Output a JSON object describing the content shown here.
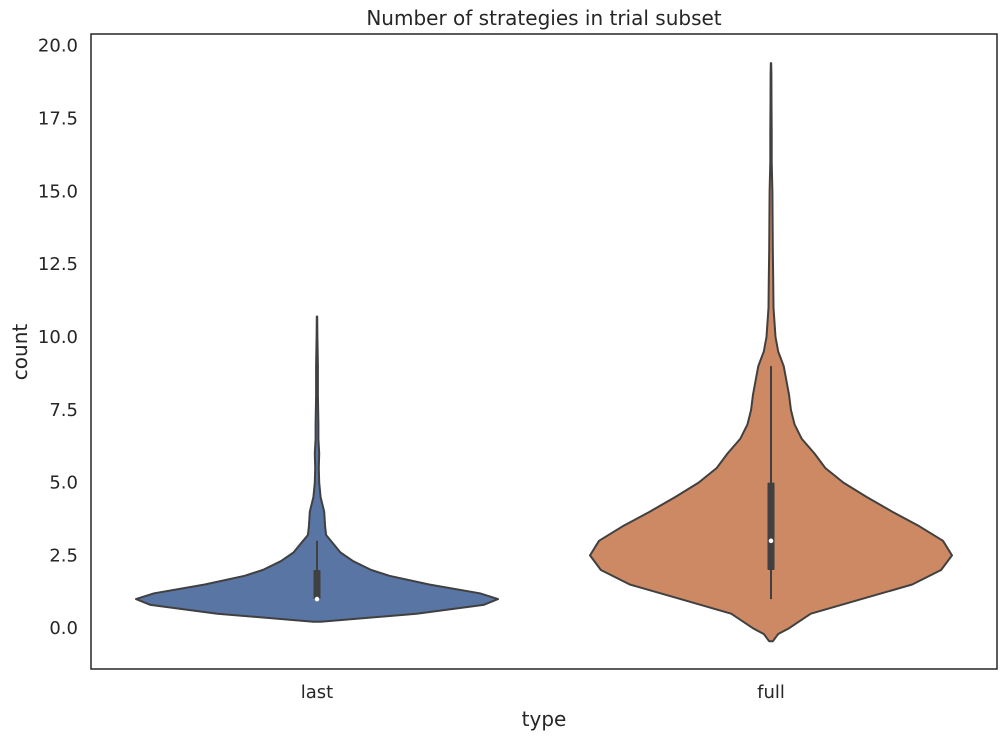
{
  "chart_data": {
    "type": "violin",
    "title": "Number of strategies in trial subset",
    "xlabel": "type",
    "ylabel": "count",
    "ylim": [
      -1.4,
      20.4
    ],
    "yticks": [
      "0.0",
      "2.5",
      "5.0",
      "7.5",
      "10.0",
      "12.5",
      "15.0",
      "17.5",
      "20.0"
    ],
    "grid": false,
    "categories": [
      "last",
      "full"
    ],
    "series": [
      {
        "category": "last",
        "color": "#5875a4",
        "density_profile": [
          [
            0.22,
            0.02
          ],
          [
            0.5,
            0.55
          ],
          [
            0.8,
            0.92
          ],
          [
            1.0,
            1.0
          ],
          [
            1.2,
            0.9
          ],
          [
            1.5,
            0.62
          ],
          [
            1.8,
            0.4
          ],
          [
            2.0,
            0.3
          ],
          [
            2.3,
            0.2
          ],
          [
            2.6,
            0.13
          ],
          [
            2.9,
            0.09
          ],
          [
            3.2,
            0.05
          ],
          [
            3.5,
            0.045
          ],
          [
            4.0,
            0.04
          ],
          [
            4.5,
            0.02
          ],
          [
            5.0,
            0.012
          ],
          [
            5.5,
            0.01
          ],
          [
            6.0,
            0.012
          ],
          [
            6.5,
            0.008
          ],
          [
            7.0,
            0.008
          ],
          [
            8.0,
            0.005
          ],
          [
            9.0,
            0.005
          ],
          [
            10.0,
            0.002
          ],
          [
            10.7,
            0.001
          ]
        ],
        "box": {
          "q1": 1,
          "median": 1,
          "q3": 2,
          "whisker_low": 1,
          "whisker_high": 3
        }
      },
      {
        "category": "full",
        "color": "#cc8963",
        "density_profile": [
          [
            -0.45,
            0.01
          ],
          [
            -0.2,
            0.04
          ],
          [
            0.0,
            0.1
          ],
          [
            0.5,
            0.22
          ],
          [
            1.0,
            0.5
          ],
          [
            1.5,
            0.78
          ],
          [
            2.0,
            0.94
          ],
          [
            2.5,
            1.0
          ],
          [
            3.0,
            0.95
          ],
          [
            3.5,
            0.82
          ],
          [
            4.0,
            0.67
          ],
          [
            4.5,
            0.53
          ],
          [
            5.0,
            0.4
          ],
          [
            5.5,
            0.3
          ],
          [
            6.0,
            0.24
          ],
          [
            6.5,
            0.17
          ],
          [
            7.0,
            0.13
          ],
          [
            7.5,
            0.11
          ],
          [
            8.0,
            0.1
          ],
          [
            8.5,
            0.085
          ],
          [
            9.0,
            0.07
          ],
          [
            9.5,
            0.04
          ],
          [
            10.0,
            0.025
          ],
          [
            11.0,
            0.014
          ],
          [
            12.0,
            0.012
          ],
          [
            13.0,
            0.01
          ],
          [
            14.0,
            0.009
          ],
          [
            15.0,
            0.008
          ],
          [
            16.0,
            0.004
          ],
          [
            17.0,
            0.004
          ],
          [
            18.0,
            0.003
          ],
          [
            19.0,
            0.002
          ],
          [
            19.4,
            0.001
          ]
        ],
        "box": {
          "q1": 2,
          "median": 3,
          "q3": 5,
          "whisker_low": 1,
          "whisker_high": 9
        }
      }
    ]
  }
}
